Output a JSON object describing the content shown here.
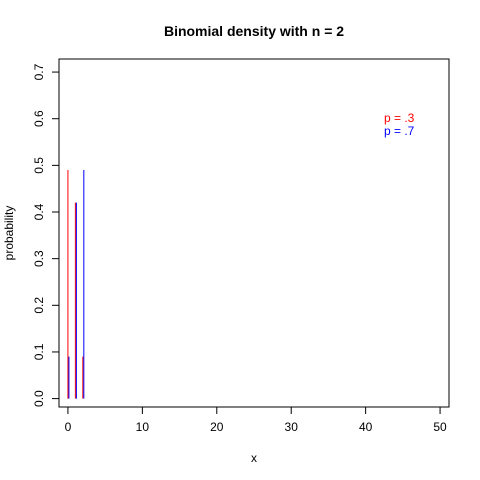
{
  "chart_data": {
    "type": "bar",
    "title": "Binomial density with n =  2",
    "xlabel": "x",
    "ylabel": "probability",
    "xlim": [
      -1.2,
      51.2
    ],
    "ylim": [
      -0.018,
      0.728
    ],
    "x_ticks": [
      0,
      10,
      20,
      30,
      40,
      50
    ],
    "y_ticks": [
      0.0,
      0.1,
      0.2,
      0.3,
      0.4,
      0.5,
      0.6,
      0.7
    ],
    "x_tick_labels": [
      "0",
      "10",
      "20",
      "30",
      "40",
      "50"
    ],
    "y_tick_labels": [
      "0.0",
      "0.1",
      "0.2",
      "0.3",
      "0.4",
      "0.5",
      "0.6",
      "0.7"
    ],
    "grid": false,
    "legend_position": "top-right",
    "series": [
      {
        "name": "p = .3",
        "color": "#ff0000",
        "x": [
          0,
          1,
          2
        ],
        "values": [
          0.49,
          0.42,
          0.09
        ]
      },
      {
        "name": "p = .7",
        "color": "#0000ff",
        "x": [
          0,
          1,
          2
        ],
        "values": [
          0.09,
          0.42,
          0.49
        ]
      }
    ]
  }
}
